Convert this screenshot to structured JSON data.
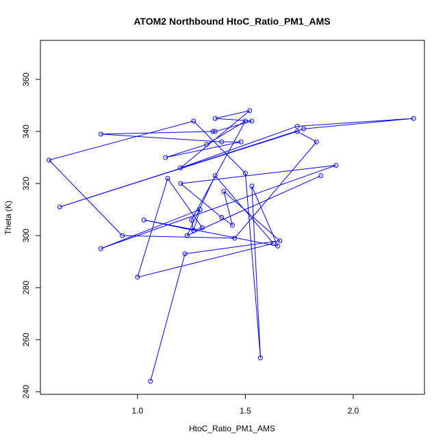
{
  "chart_data": {
    "type": "line",
    "title": "ATOM2 Northbound HtoC_Ratio_PM1_AMS",
    "xlabel": "HtoC_Ratio_PM1_AMS",
    "ylabel": "Theta (K)",
    "xlim": [
      0.55,
      2.33
    ],
    "ylim": [
      239,
      375
    ],
    "x_ticks": [
      {
        "value": 1.0,
        "label": "1.0"
      },
      {
        "value": 1.5,
        "label": "1.5"
      },
      {
        "value": 2.0,
        "label": "2.0"
      }
    ],
    "y_ticks": [
      {
        "value": 240,
        "label": "240"
      },
      {
        "value": 260,
        "label": "260"
      },
      {
        "value": 280,
        "label": "280"
      },
      {
        "value": 300,
        "label": "300"
      },
      {
        "value": 320,
        "label": "320"
      },
      {
        "value": 340,
        "label": "340"
      },
      {
        "value": 360,
        "label": "360"
      }
    ],
    "markers": "open-circle",
    "grid": false,
    "series": [
      {
        "color": "#0000ff",
        "points": [
          [
            1.06,
            244
          ],
          [
            1.22,
            293
          ],
          [
            1.66,
            298
          ],
          [
            1.4,
            317
          ],
          [
            1.44,
            304
          ],
          [
            1.39,
            307
          ],
          [
            1.2,
            320
          ],
          [
            1.92,
            327
          ],
          [
            0.83,
            295
          ],
          [
            1.29,
            310
          ],
          [
            1.26,
            302
          ],
          [
            1.03,
            306
          ],
          [
            1.65,
            296
          ],
          [
            1.53,
            319
          ],
          [
            1.57,
            253
          ],
          [
            1.5,
            324
          ],
          [
            1.26,
            344
          ],
          [
            0.59,
            329
          ],
          [
            0.93,
            300
          ],
          [
            1.45,
            299
          ],
          [
            1.83,
            336
          ],
          [
            1.74,
            340
          ],
          [
            0.64,
            311
          ],
          [
            1.77,
            341
          ],
          [
            2.28,
            345
          ],
          [
            1.74,
            342
          ],
          [
            1.2,
            326
          ],
          [
            1.52,
            348
          ],
          [
            1.36,
            345
          ],
          [
            1.53,
            344
          ],
          [
            1.36,
            340
          ],
          [
            1.35,
            340
          ],
          [
            0.83,
            339
          ],
          [
            1.39,
            336
          ],
          [
            1.48,
            336
          ],
          [
            1.13,
            330
          ],
          [
            1.32,
            335
          ],
          [
            1.5,
            344
          ],
          [
            1.25,
            306
          ],
          [
            1.26,
            302
          ],
          [
            1.3,
            303
          ],
          [
            1.14,
            322
          ],
          [
            1.0,
            284
          ],
          [
            1.63,
            297
          ],
          [
            1.36,
            323
          ],
          [
            1.23,
            300
          ],
          [
            1.85,
            323
          ]
        ]
      }
    ]
  }
}
